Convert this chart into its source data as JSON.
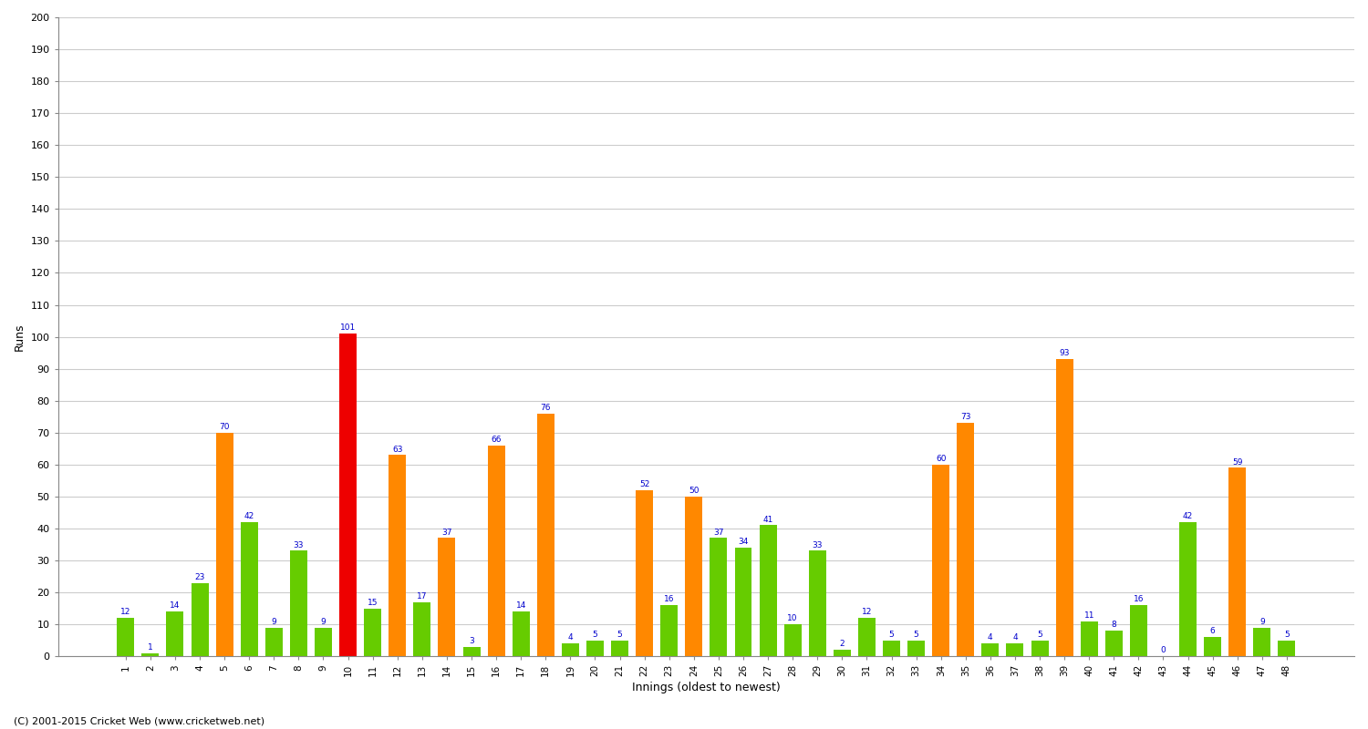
{
  "innings": [
    1,
    2,
    3,
    4,
    5,
    6,
    7,
    8,
    9,
    10,
    11,
    12,
    13,
    14,
    15,
    16,
    17,
    18,
    19,
    20,
    21,
    22,
    23,
    24,
    25,
    26,
    27,
    28,
    29,
    30,
    31,
    32,
    33,
    34,
    35,
    36,
    37,
    38,
    39,
    40,
    41,
    42,
    43,
    44,
    45,
    46,
    47,
    48
  ],
  "runs": [
    12,
    1,
    14,
    23,
    70,
    42,
    9,
    33,
    9,
    101,
    15,
    63,
    17,
    37,
    3,
    66,
    14,
    76,
    4,
    5,
    5,
    52,
    16,
    50,
    37,
    34,
    41,
    10,
    33,
    2,
    12,
    5,
    5,
    60,
    73,
    4,
    4,
    5,
    93,
    11,
    8,
    16,
    0,
    42,
    6,
    59,
    9,
    5
  ],
  "colors": [
    "green",
    "green",
    "green",
    "green",
    "orange",
    "green",
    "green",
    "green",
    "green",
    "red",
    "green",
    "orange",
    "green",
    "orange",
    "green",
    "orange",
    "green",
    "orange",
    "green",
    "green",
    "green",
    "orange",
    "green",
    "orange",
    "green",
    "green",
    "green",
    "green",
    "green",
    "green",
    "green",
    "green",
    "green",
    "orange",
    "orange",
    "green",
    "green",
    "green",
    "orange",
    "green",
    "green",
    "green",
    "green",
    "green",
    "green",
    "orange",
    "green",
    "green"
  ],
  "ylabel": "Runs",
  "xlabel": "Innings (oldest to newest)",
  "ylim": [
    0,
    200
  ],
  "yticks": [
    0,
    10,
    20,
    30,
    40,
    50,
    60,
    70,
    80,
    90,
    100,
    110,
    120,
    130,
    140,
    150,
    160,
    170,
    180,
    190,
    200
  ],
  "footer": "(C) 2001-2015 Cricket Web (www.cricketweb.net)",
  "bar_color_map": {
    "green": "#66CC00",
    "orange": "#FF8800",
    "red": "#EE0000"
  },
  "label_color": "#0000CC",
  "background_color": "#FFFFFF",
  "grid_color": "#CCCCCC"
}
